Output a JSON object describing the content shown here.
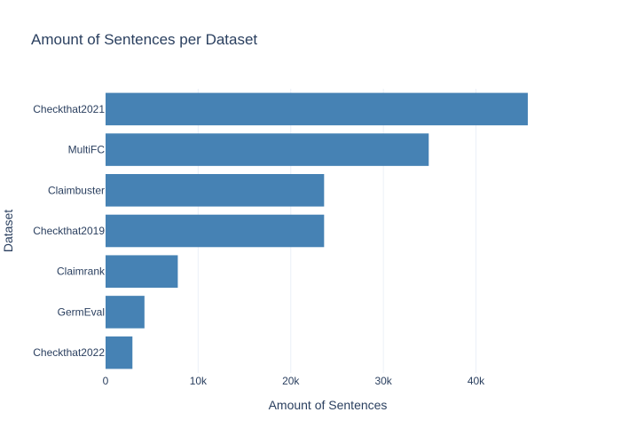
{
  "chart_data": {
    "type": "bar",
    "orientation": "horizontal",
    "title": "Amount of Sentences per Dataset",
    "xlabel": "Amount of Sentences",
    "ylabel": "Dataset",
    "categories": [
      "Checkthat2021",
      "MultiFC",
      "Claimbuster",
      "Checkthat2019",
      "Claimrank",
      "GermEval",
      "Checkthat2022"
    ],
    "values": [
      45600,
      34900,
      23600,
      23600,
      7800,
      4200,
      2900
    ],
    "xlim": [
      0,
      48000
    ],
    "xticks": [
      0,
      10000,
      20000,
      30000,
      40000
    ],
    "xtick_labels": [
      "0",
      "10k",
      "20k",
      "30k",
      "40k"
    ],
    "bar_color": "#4682b4",
    "grid": true,
    "legend": false
  }
}
